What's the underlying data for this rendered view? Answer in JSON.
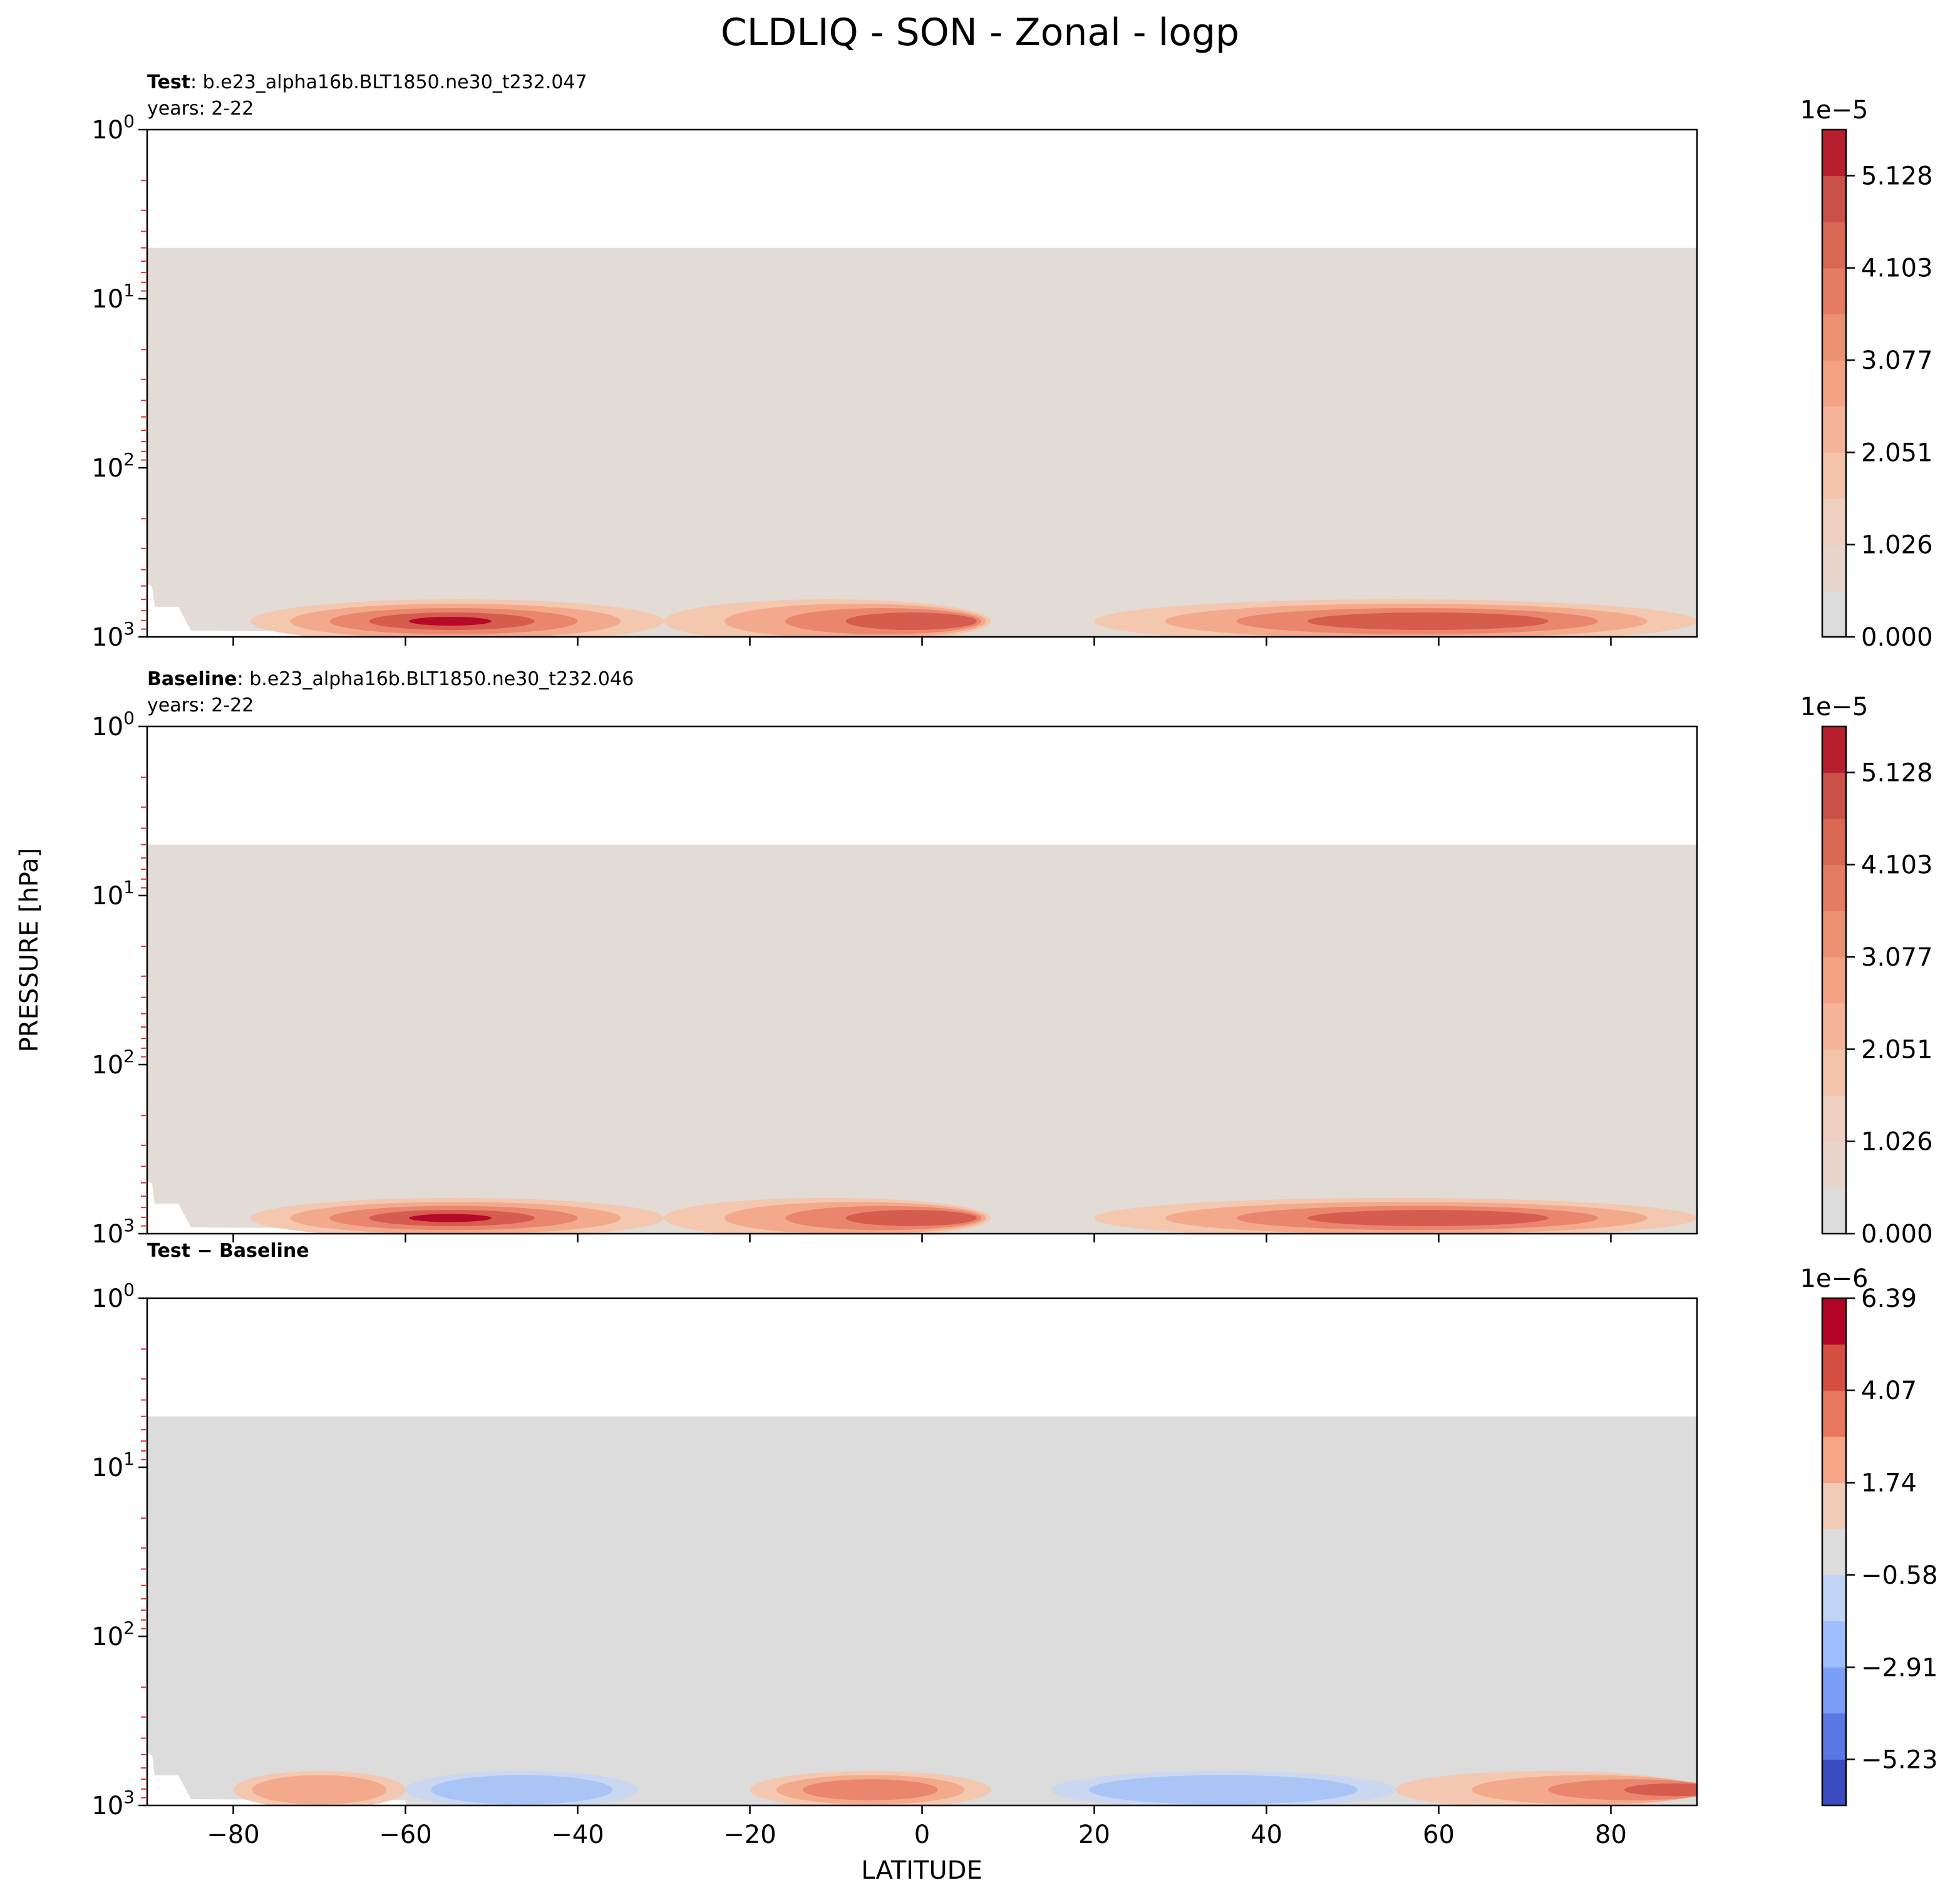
{
  "title": "CLDLIQ - SON - Zonal - logp",
  "xlabel": "LATITUDE",
  "ylabel": "PRESSURE [hPa]",
  "x_ticks": [
    -80,
    -60,
    -40,
    -20,
    0,
    20,
    40,
    60,
    80
  ],
  "x_tick_labels": [
    "−80",
    "−60",
    "−40",
    "−20",
    "0",
    "20",
    "40",
    "60",
    "80"
  ],
  "y_ticks": [
    {
      "value": 1,
      "base": "10",
      "exp": "0"
    },
    {
      "value": 10,
      "base": "10",
      "exp": "1"
    },
    {
      "value": 100,
      "base": "10",
      "exp": "2"
    },
    {
      "value": 1000,
      "base": "10",
      "exp": "3"
    }
  ],
  "colors": {
    "test_background": "#e2dbd6",
    "diff_background": "#dcdcdc",
    "reds": [
      "#f4c6ad",
      "#f2a98a",
      "#e9846b",
      "#d55a4c",
      "#b40426"
    ],
    "blues": [
      "#c8d6f0",
      "#a9c3f5",
      "#86a8f9",
      "#6585ee",
      "#3b4cc0"
    ]
  },
  "chart_data": [
    {
      "type": "heatmap",
      "panel": "test",
      "label_bold": "Test",
      "label_rest": ": b.e23_alpha16b.BLT1850.ne30_t232.047",
      "years": "years: 2-22",
      "xlim": [
        -90,
        90
      ],
      "ylim": [
        1000,
        1
      ],
      "yscale": "log",
      "data_top_hPa": 5,
      "colorbar": {
        "exponent_base": "1e",
        "exponent_value": "−5",
        "ticks": [
          "0.000",
          "1.026",
          "2.051",
          "3.077",
          "4.103",
          "5.128"
        ],
        "tick_values": [
          0,
          1.026,
          2.051,
          3.077,
          4.103,
          5.128
        ],
        "range": [
          0,
          5.64
        ],
        "levels": 11,
        "colors": [
          "#dddcdc",
          "#e8d6cc",
          "#efcfbf",
          "#f3c3aa",
          "#f5b497",
          "#f3a383",
          "#ec9072",
          "#e37c62",
          "#d86754",
          "#ca5147",
          "#b71f2f"
        ]
      },
      "features": [
        {
          "lat_range": [
            -78,
            -30
          ],
          "max_lat": -55,
          "intensity": "high"
        },
        {
          "lat_range": [
            -30,
            8
          ],
          "max_lat": 2,
          "intensity": "medium"
        },
        {
          "lat_range": [
            20,
            90
          ],
          "max_lat": 60,
          "intensity": "medium"
        }
      ]
    },
    {
      "type": "heatmap",
      "panel": "baseline",
      "label_bold": "Baseline",
      "label_rest": ": b.e23_alpha16b.BLT1850.ne30_t232.046",
      "years": "years: 2-22",
      "xlim": [
        -90,
        90
      ],
      "ylim": [
        1000,
        1
      ],
      "yscale": "log",
      "data_top_hPa": 5,
      "colorbar": {
        "exponent_base": "1e",
        "exponent_value": "−5",
        "ticks": [
          "0.000",
          "1.026",
          "2.051",
          "3.077",
          "4.103",
          "5.128"
        ],
        "tick_values": [
          0,
          1.026,
          2.051,
          3.077,
          4.103,
          5.128
        ],
        "range": [
          0,
          5.64
        ],
        "levels": 11,
        "colors": [
          "#dddcdc",
          "#e8d6cc",
          "#efcfbf",
          "#f3c3aa",
          "#f5b497",
          "#f3a383",
          "#ec9072",
          "#e37c62",
          "#d86754",
          "#ca5147",
          "#b71f2f"
        ]
      },
      "features": [
        {
          "lat_range": [
            -78,
            -30
          ],
          "max_lat": -55,
          "intensity": "high"
        },
        {
          "lat_range": [
            -30,
            8
          ],
          "max_lat": 2,
          "intensity": "medium"
        },
        {
          "lat_range": [
            20,
            90
          ],
          "max_lat": 60,
          "intensity": "medium"
        }
      ]
    },
    {
      "type": "heatmap",
      "panel": "difference",
      "label_bold": "Test − Baseline",
      "label_rest": "",
      "years": "",
      "xlim": [
        -90,
        90
      ],
      "ylim": [
        1000,
        1
      ],
      "yscale": "log",
      "data_top_hPa": 5,
      "colorbar": {
        "exponent_base": "1e",
        "exponent_value": "−6",
        "ticks": [
          "−5.23",
          "−2.91",
          "−0.58",
          "1.74",
          "4.07",
          "6.39"
        ],
        "tick_values": [
          -5.23,
          -2.91,
          -0.58,
          1.74,
          4.07,
          6.39
        ],
        "range": [
          -6.39,
          6.39
        ],
        "levels": 11,
        "colors": [
          "#3b4cc0",
          "#5a78e4",
          "#7b9ff9",
          "#9ebeff",
          "#c0d4f5",
          "#dcdcdc",
          "#f2cbb7",
          "#f5a585",
          "#e8785d",
          "#d44e41",
          "#b40426"
        ]
      },
      "features": [
        {
          "lat_range": [
            -80,
            -60
          ],
          "sign": "positive",
          "intensity": "low"
        },
        {
          "lat_range": [
            -60,
            -33
          ],
          "sign": "negative",
          "intensity": "low"
        },
        {
          "lat_range": [
            -20,
            8
          ],
          "sign": "positive",
          "intensity": "medium"
        },
        {
          "lat_range": [
            15,
            55
          ],
          "sign": "negative",
          "intensity": "low"
        },
        {
          "lat_range": [
            55,
            90
          ],
          "sign": "positive",
          "intensity": "high"
        }
      ]
    }
  ]
}
